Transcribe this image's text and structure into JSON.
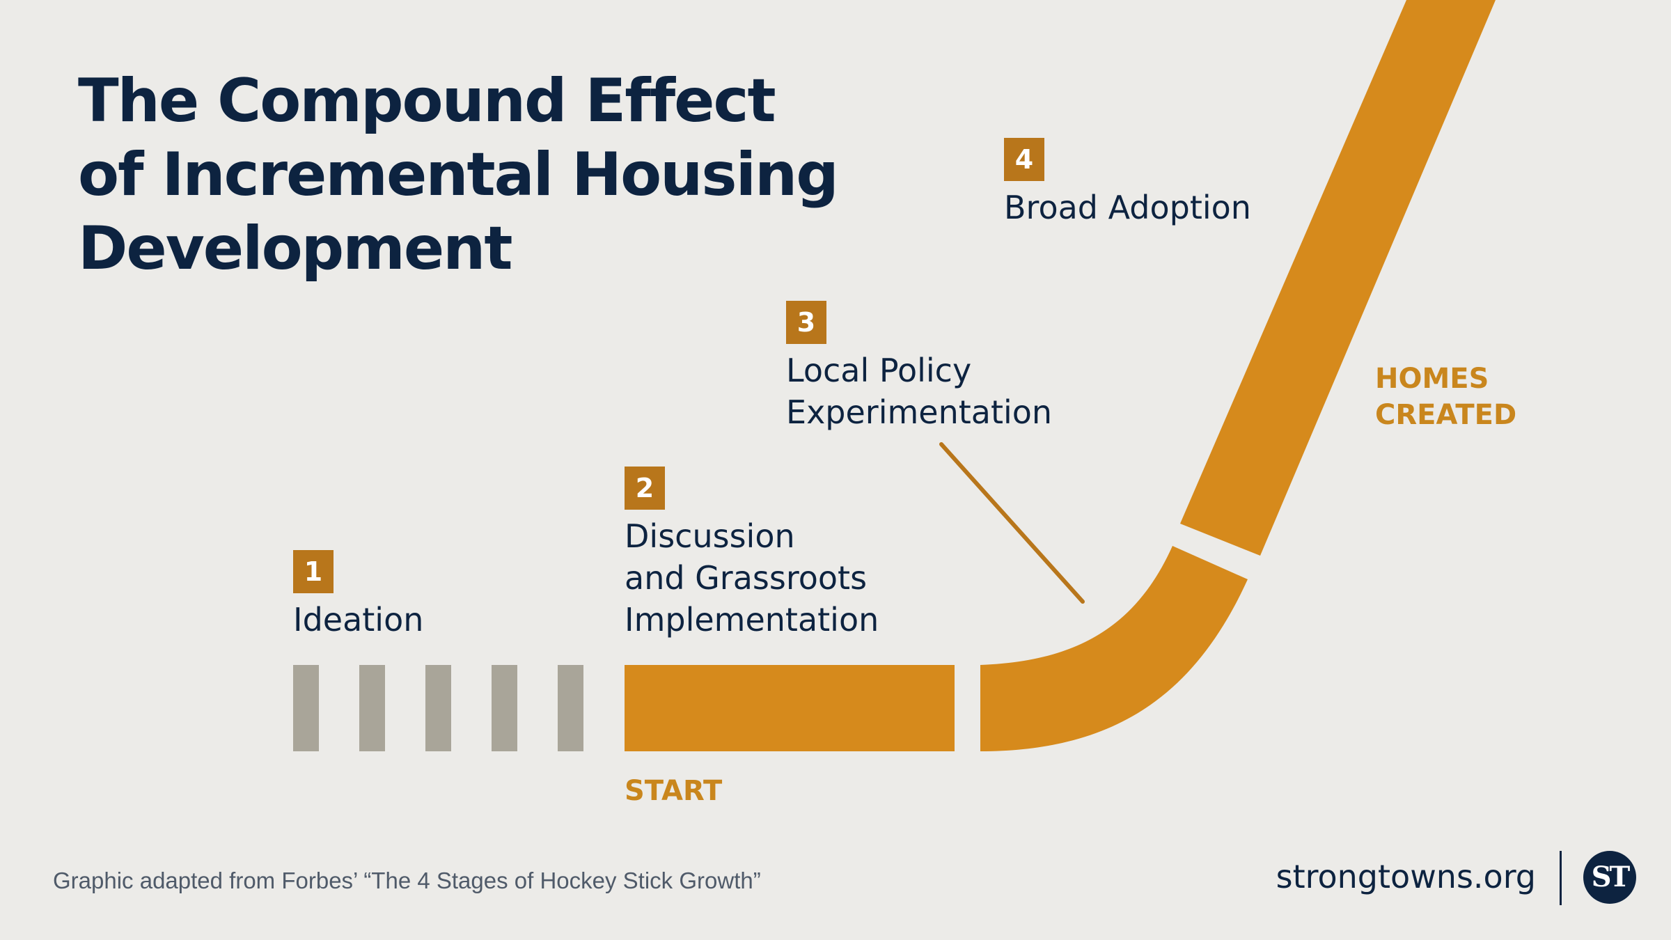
{
  "title": {
    "line1": "The Compound Effect",
    "line2": "of Incremental Housing",
    "line3": "Development"
  },
  "stages": [
    {
      "number": "1",
      "lines": [
        "Ideation"
      ]
    },
    {
      "number": "2",
      "lines": [
        "Discussion",
        "and Grassroots",
        "Implementation"
      ]
    },
    {
      "number": "3",
      "lines": [
        "Local Policy",
        "Experimentation"
      ]
    },
    {
      "number": "4",
      "lines": [
        "Broad Adoption"
      ]
    }
  ],
  "axis": {
    "start_label": "START",
    "end_label_line1": "HOMES",
    "end_label_line2": "CREATED"
  },
  "footer": {
    "note": "Graphic adapted from Forbes’ “The 4 Stages of Hockey Stick Growth”",
    "site": "strongtowns.org",
    "logo_text": "ST"
  },
  "colors": {
    "background": "#ecebe8",
    "navy": "#0d2340",
    "orange": "#d68a1c",
    "badge": "#b8761b",
    "gray_bars": "#a9a599"
  }
}
